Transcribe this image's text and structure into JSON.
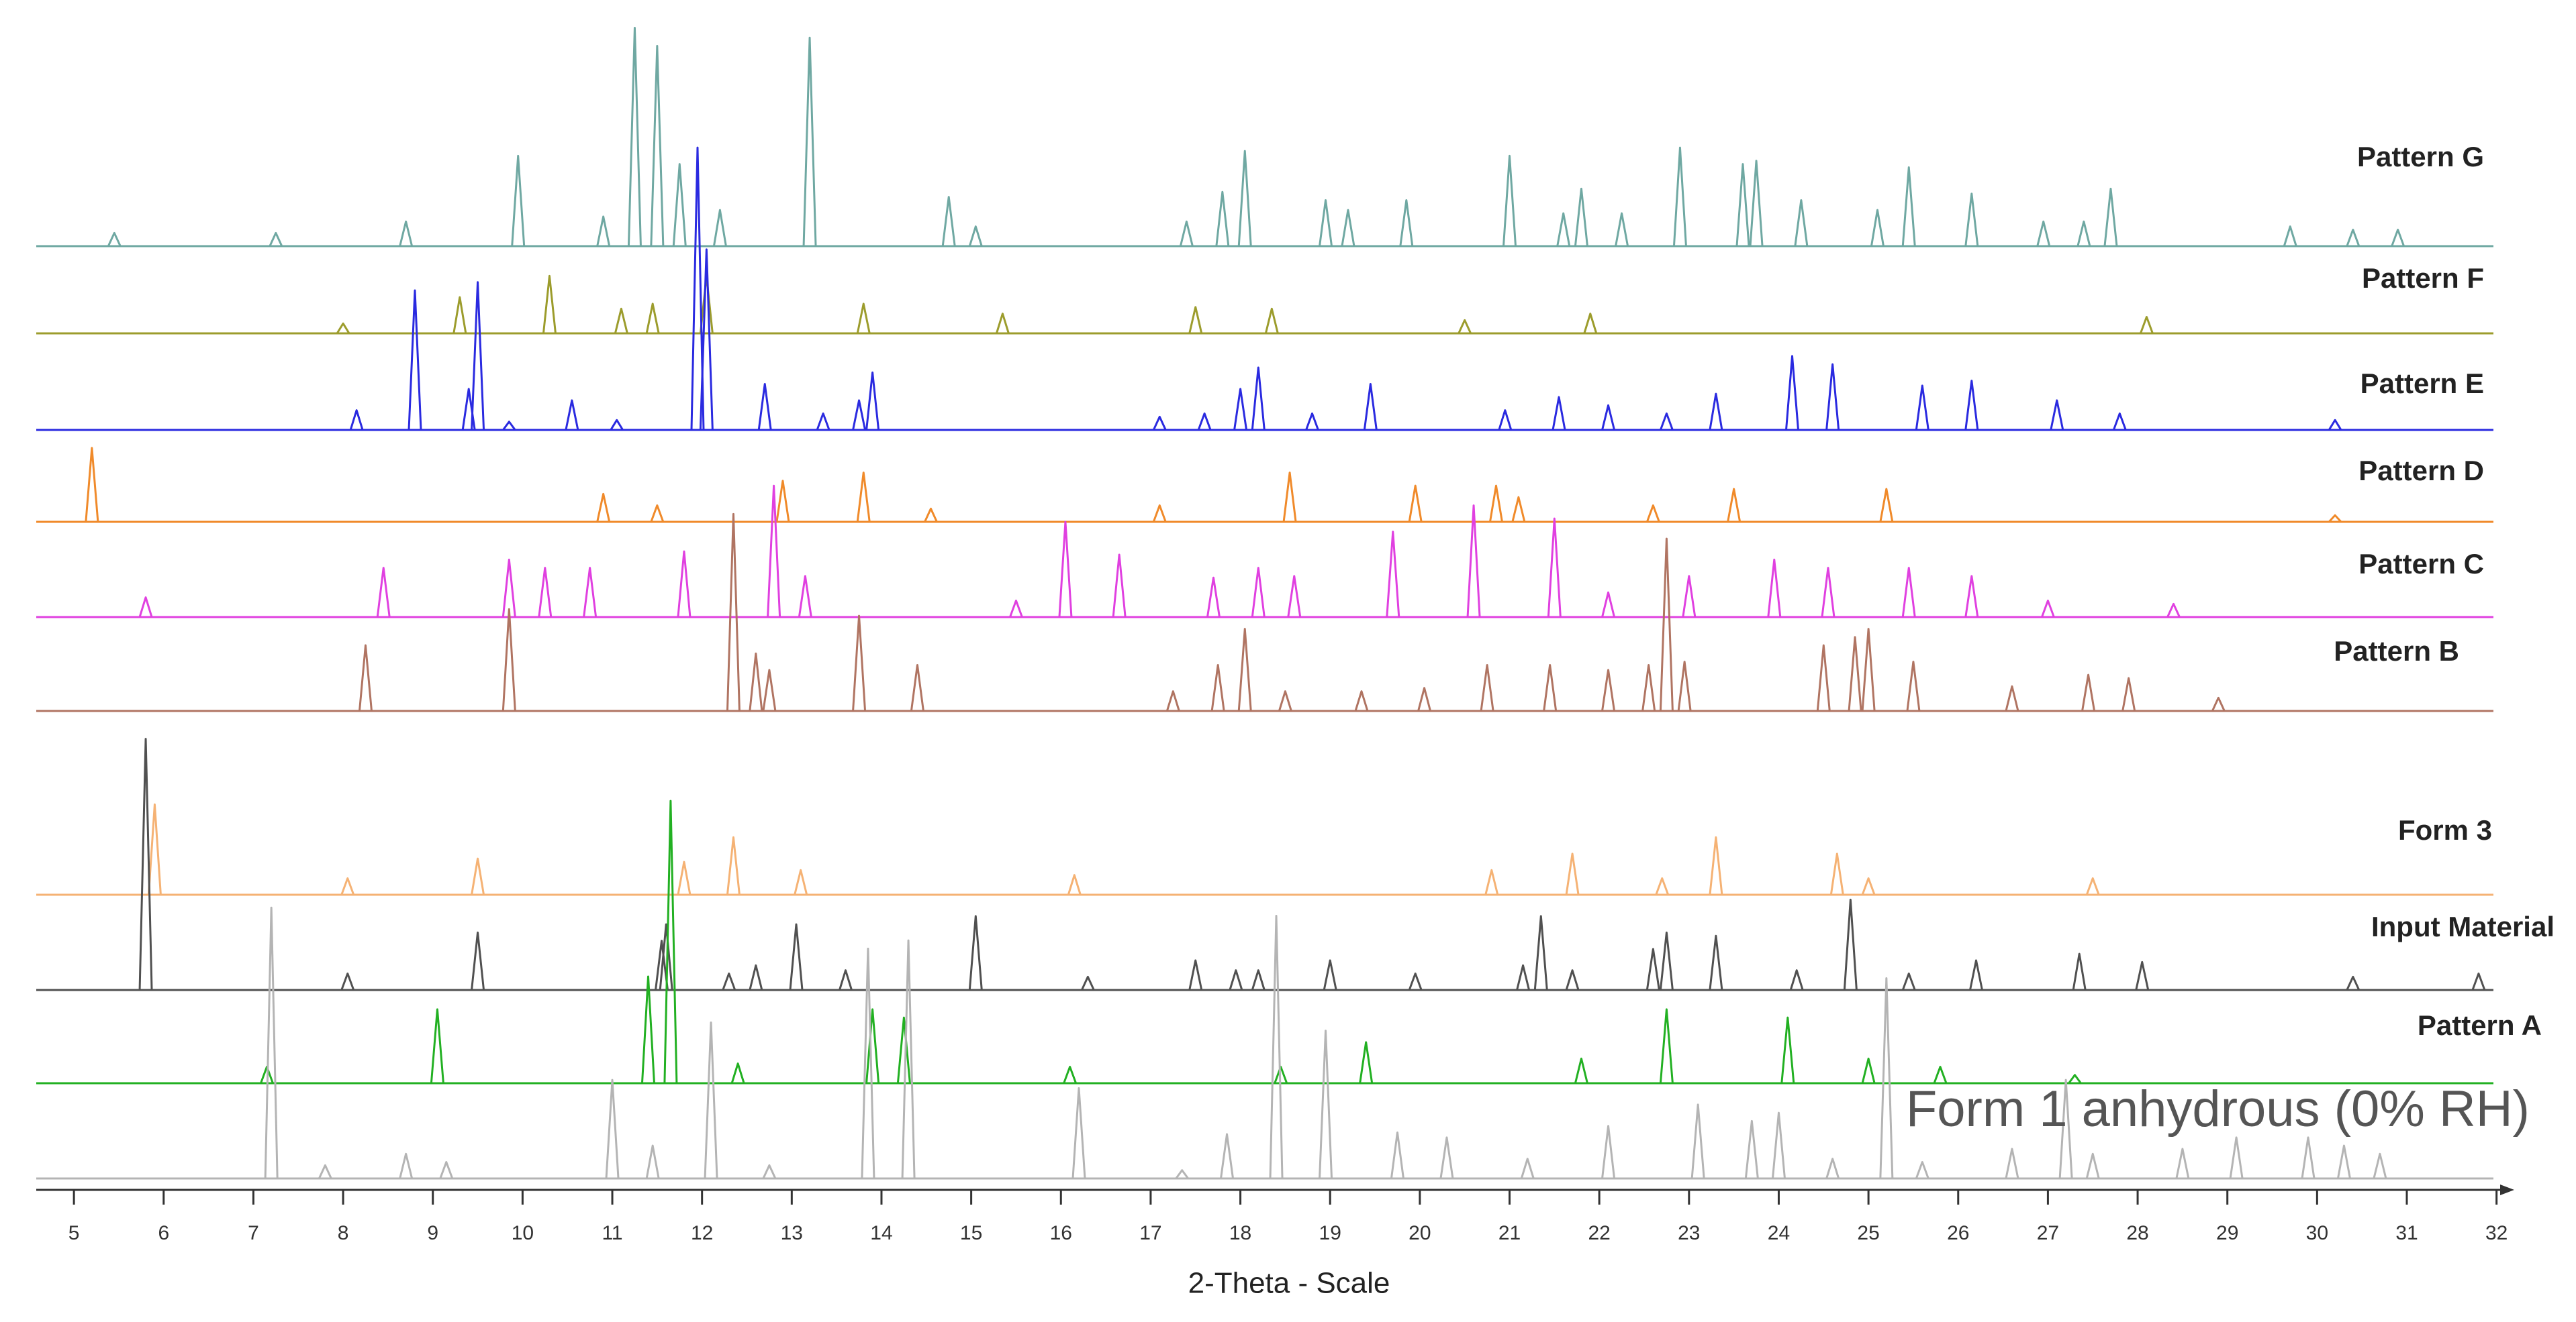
{
  "chart_data": {
    "type": "spectrum",
    "x_label": "2-Theta - Scale",
    "xlim": [
      4.58,
      32.04
    ],
    "xticks": [
      5,
      6,
      7,
      8,
      9,
      10,
      11,
      12,
      13,
      14,
      15,
      16,
      17,
      18,
      19,
      20,
      21,
      22,
      23,
      24,
      25,
      26,
      27,
      28,
      29,
      30,
      31,
      32
    ],
    "series": [
      {
        "name": "Pattern G",
        "color": "#6fa8a2",
        "x": [
          5.45,
          7.25,
          8.7,
          9.95,
          10.9,
          11.25,
          11.5,
          11.75,
          12.2,
          13.2,
          14.75,
          15.05,
          17.4,
          17.8,
          18.05,
          18.95,
          19.2,
          19.85,
          21.0,
          21.6,
          21.8,
          22.25,
          22.9,
          23.6,
          23.75,
          24.25,
          25.1,
          25.45,
          26.15,
          26.95,
          27.4,
          27.7,
          29.7,
          30.4,
          30.9
        ],
        "values": [
          8,
          8,
          15,
          55,
          18,
          133,
          122,
          50,
          22,
          127,
          30,
          12,
          15,
          33,
          58,
          28,
          22,
          28,
          55,
          20,
          35,
          20,
          60,
          50,
          52,
          28,
          22,
          48,
          32,
          15,
          15,
          35,
          12,
          10,
          10
        ]
      },
      {
        "name": "Pattern F",
        "color": "#9c9c2c",
        "x": [
          8.0,
          9.3,
          10.3,
          11.1,
          11.45,
          12.05,
          13.8,
          15.35,
          17.5,
          18.35,
          20.5,
          21.9,
          28.1
        ],
        "values": [
          6,
          22,
          35,
          15,
          18,
          35,
          18,
          12,
          16,
          15,
          8,
          12,
          10
        ]
      },
      {
        "name": "Pattern E",
        "color": "#2a2ae0",
        "x": [
          8.15,
          8.8,
          9.4,
          9.5,
          9.85,
          10.55,
          11.05,
          11.95,
          12.05,
          12.7,
          13.35,
          13.75,
          13.9,
          17.1,
          17.6,
          18.0,
          18.2,
          18.8,
          19.45,
          20.95,
          21.55,
          22.1,
          22.75,
          23.3,
          24.15,
          24.6,
          25.6,
          26.15,
          27.1,
          27.8,
          30.2
        ],
        "values": [
          12,
          85,
          25,
          90,
          5,
          18,
          6,
          172,
          110,
          28,
          10,
          18,
          35,
          8,
          10,
          25,
          38,
          10,
          28,
          12,
          20,
          15,
          10,
          22,
          45,
          40,
          27,
          30,
          18,
          10,
          6
        ]
      },
      {
        "name": "Pattern D",
        "color": "#f08a2a",
        "x": [
          5.2,
          10.9,
          11.5,
          12.9,
          13.8,
          14.55,
          17.1,
          18.55,
          19.95,
          20.85,
          21.1,
          22.6,
          23.5,
          25.2,
          30.2
        ],
        "values": [
          45,
          17,
          10,
          25,
          30,
          8,
          10,
          30,
          22,
          22,
          15,
          10,
          20,
          20,
          4
        ]
      },
      {
        "name": "Pattern C",
        "color": "#e040e0",
        "x": [
          5.8,
          8.45,
          9.85,
          10.25,
          10.75,
          11.8,
          12.8,
          13.15,
          15.5,
          16.05,
          16.65,
          17.7,
          18.2,
          18.6,
          19.7,
          20.6,
          21.5,
          22.1,
          23.0,
          23.95,
          24.55,
          25.45,
          26.15,
          27.0,
          28.4
        ],
        "values": [
          12,
          30,
          35,
          30,
          30,
          40,
          80,
          25,
          10,
          58,
          38,
          24,
          30,
          25,
          52,
          68,
          60,
          15,
          25,
          35,
          30,
          30,
          25,
          10,
          8
        ]
      },
      {
        "name": "Pattern B",
        "color": "#b07462",
        "x": [
          8.25,
          9.85,
          12.35,
          12.6,
          12.75,
          13.75,
          14.4,
          17.25,
          17.75,
          18.05,
          18.5,
          19.35,
          20.05,
          20.75,
          21.45,
          22.1,
          22.55,
          22.75,
          22.95,
          24.5,
          24.85,
          25.0,
          25.5,
          26.6,
          27.45,
          27.9,
          28.9
        ],
        "values": [
          40,
          62,
          120,
          35,
          25,
          58,
          28,
          12,
          28,
          50,
          12,
          12,
          14,
          28,
          28,
          25,
          28,
          105,
          30,
          40,
          45,
          50,
          30,
          15,
          22,
          20,
          8
        ]
      },
      {
        "name": "Form 3",
        "color": "#f5b274",
        "x": [
          5.9,
          8.05,
          9.5,
          11.8,
          12.35,
          13.1,
          16.15,
          20.8,
          21.7,
          22.7,
          23.3,
          24.65,
          25.0,
          27.5
        ],
        "values": [
          55,
          10,
          22,
          20,
          35,
          15,
          12,
          15,
          25,
          10,
          35,
          25,
          10,
          10
        ]
      },
      {
        "name": "Input Material",
        "color": "#505050",
        "x": [
          5.8,
          8.05,
          9.5,
          11.55,
          11.6,
          12.3,
          12.6,
          13.05,
          13.6,
          15.05,
          16.3,
          17.5,
          17.95,
          18.2,
          19.0,
          19.95,
          21.15,
          21.35,
          21.7,
          22.6,
          22.75,
          23.3,
          24.2,
          24.8,
          25.45,
          26.2,
          27.35,
          28.05,
          30.4,
          31.8
        ],
        "values": [
          153,
          10,
          35,
          30,
          40,
          10,
          15,
          40,
          12,
          45,
          8,
          18,
          12,
          12,
          18,
          10,
          15,
          45,
          12,
          25,
          35,
          33,
          12,
          55,
          10,
          18,
          22,
          17,
          8,
          10
        ]
      },
      {
        "name": "Pattern A",
        "color": "#22b022",
        "x": [
          7.15,
          9.05,
          11.4,
          11.65,
          12.4,
          13.9,
          14.25,
          16.1,
          18.45,
          19.4,
          21.8,
          22.75,
          24.1,
          25.0,
          25.8,
          27.3
        ],
        "values": [
          10,
          45,
          65,
          172,
          12,
          45,
          40,
          10,
          10,
          25,
          15,
          45,
          40,
          15,
          10,
          5
        ]
      },
      {
        "name": "Form 1 anhydrous (0% RH)",
        "color": "#b4b4b4",
        "x": [
          7.2,
          7.8,
          8.7,
          9.15,
          11.0,
          11.45,
          12.1,
          12.75,
          13.85,
          14.3,
          16.2,
          17.35,
          17.85,
          18.4,
          18.95,
          19.75,
          20.3,
          21.2,
          22.1,
          23.1,
          23.7,
          24.0,
          24.6,
          25.2,
          25.6,
          26.6,
          27.2,
          27.5,
          28.5,
          29.1,
          29.9,
          30.3,
          30.7
        ],
        "values": [
          165,
          8,
          15,
          10,
          60,
          20,
          95,
          8,
          140,
          145,
          55,
          5,
          27,
          160,
          90,
          28,
          25,
          12,
          32,
          45,
          35,
          40,
          12,
          122,
          10,
          18,
          60,
          15,
          18,
          25,
          25,
          20,
          15
        ]
      }
    ]
  }
}
